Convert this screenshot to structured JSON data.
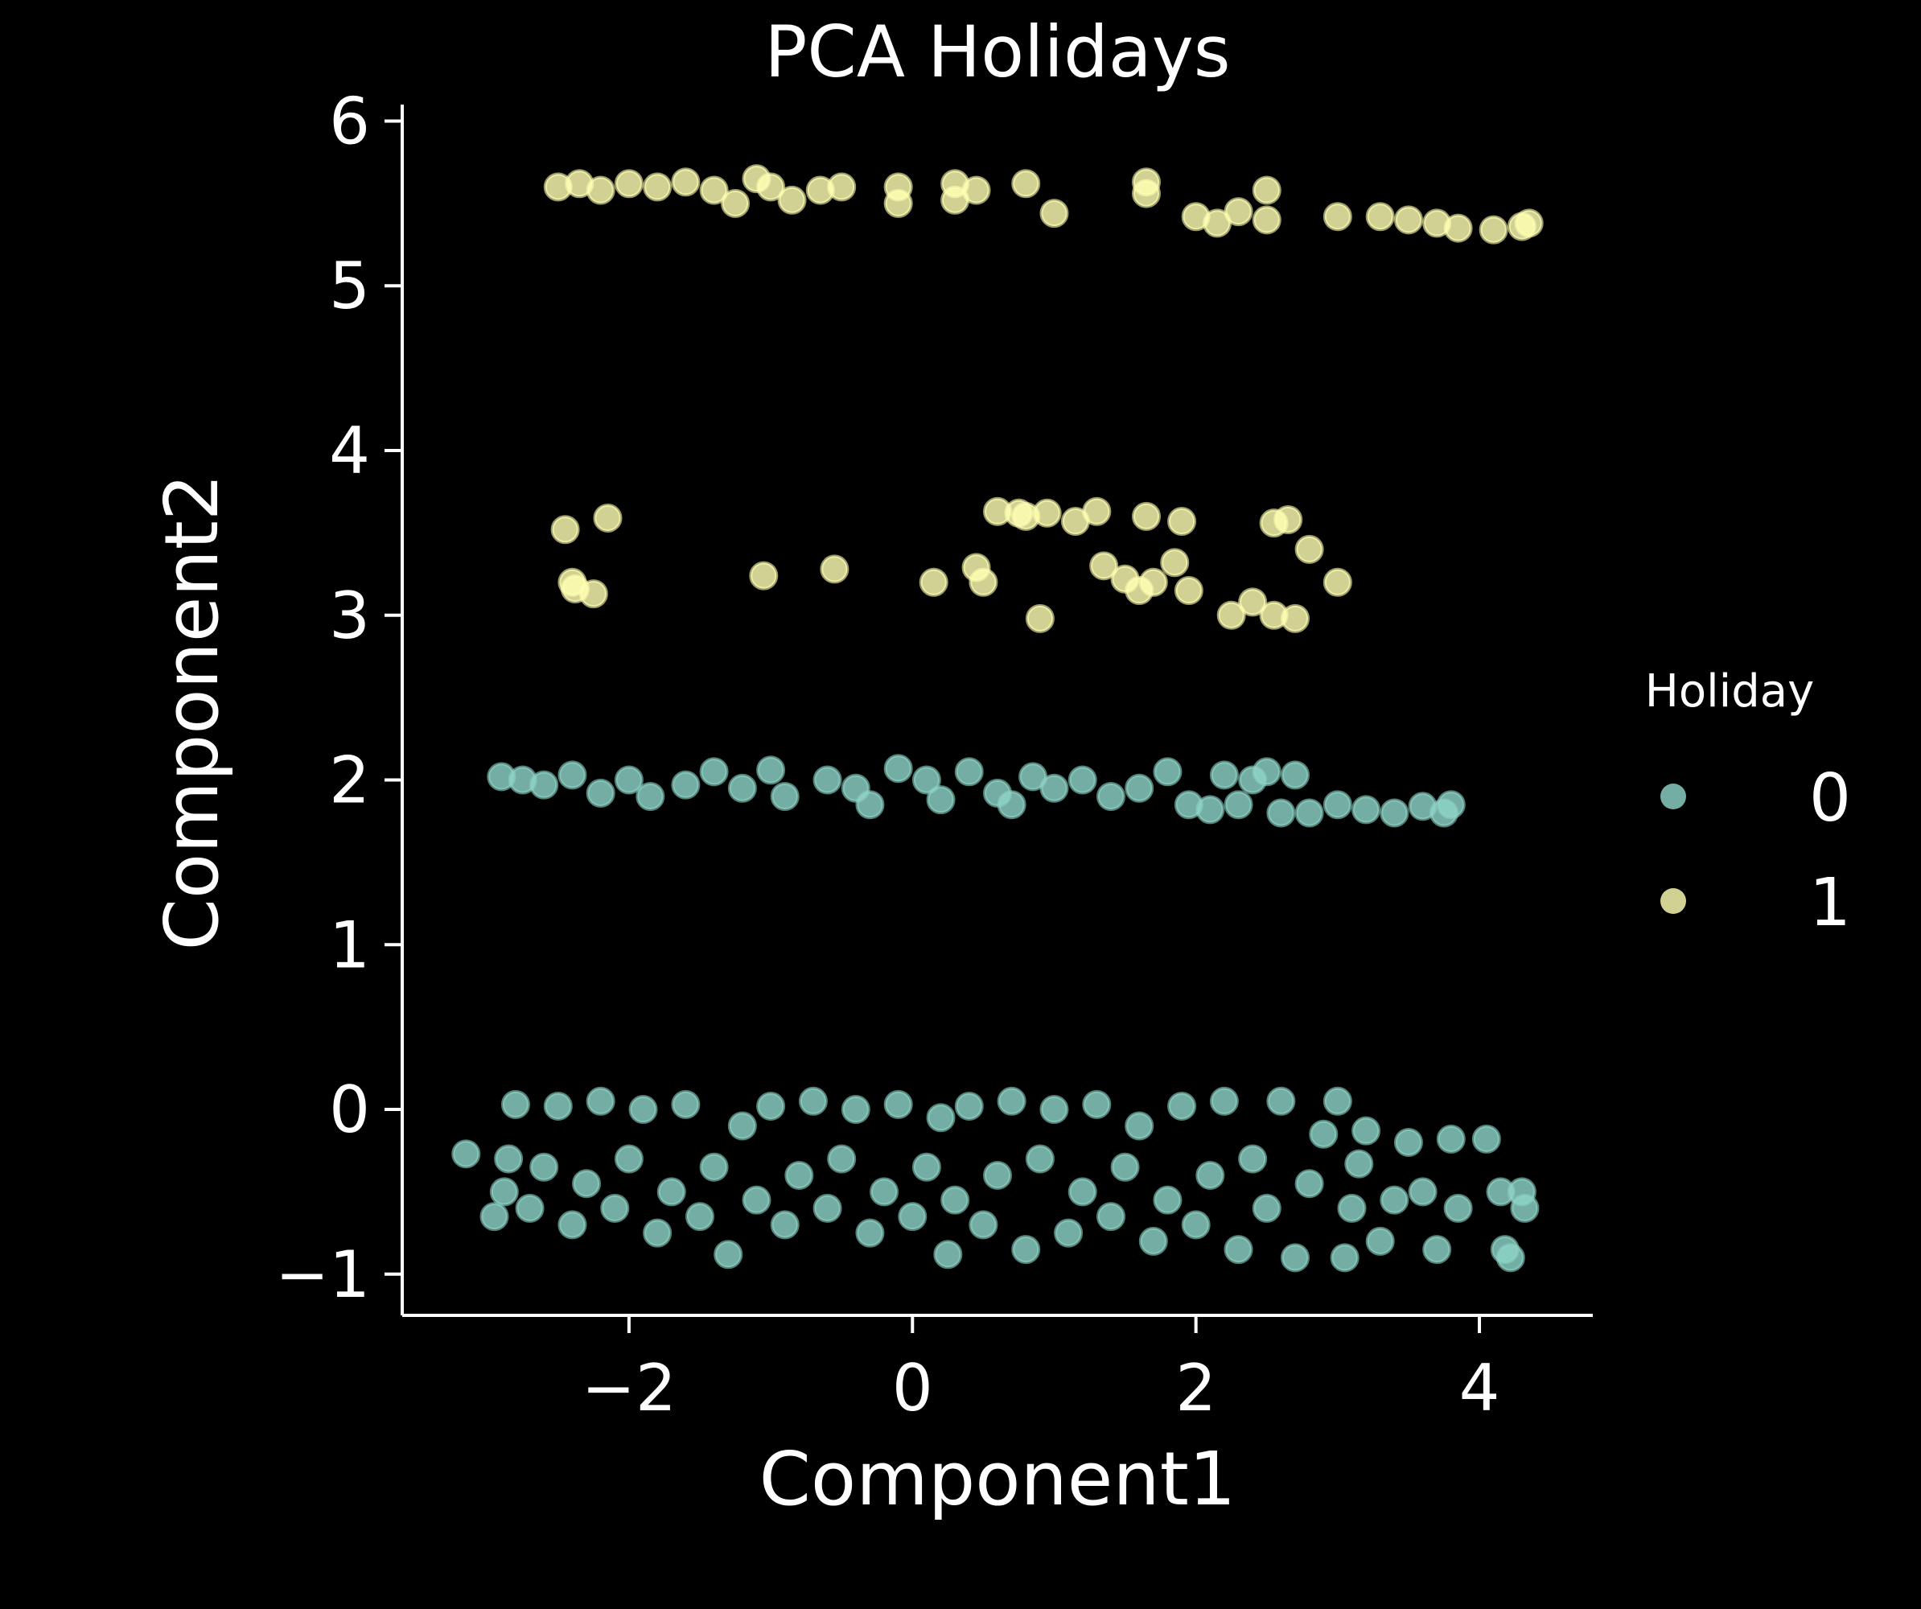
{
  "chart_data": {
    "type": "scatter",
    "title": "PCA Holidays",
    "xlabel": "Component1",
    "ylabel": "Component2",
    "xlim": [
      -3.6,
      4.8
    ],
    "ylim": [
      -1.25,
      6.1
    ],
    "xticks": [
      {
        "value": -2,
        "label": "−2"
      },
      {
        "value": 0,
        "label": "0"
      },
      {
        "value": 2,
        "label": "2"
      },
      {
        "value": 4,
        "label": "4"
      }
    ],
    "yticks": [
      {
        "value": -1,
        "label": "−1"
      },
      {
        "value": 0,
        "label": "0"
      },
      {
        "value": 1,
        "label": "1"
      },
      {
        "value": 2,
        "label": "2"
      },
      {
        "value": 3,
        "label": "3"
      },
      {
        "value": 4,
        "label": "4"
      },
      {
        "value": 5,
        "label": "5"
      },
      {
        "value": 6,
        "label": "6"
      }
    ],
    "grid": false,
    "background": "#000000",
    "legend": {
      "title": "Holiday",
      "position": "right"
    },
    "series": [
      {
        "name": "0",
        "color": "#8dd3c7",
        "points": [
          [
            -3.15,
            -0.27
          ],
          [
            -2.95,
            -0.65
          ],
          [
            -2.88,
            -0.5
          ],
          [
            -2.85,
            -0.3
          ],
          [
            -2.8,
            0.03
          ],
          [
            -2.7,
            -0.6
          ],
          [
            -2.6,
            -0.35
          ],
          [
            -2.5,
            0.02
          ],
          [
            -2.4,
            -0.7
          ],
          [
            -2.3,
            -0.45
          ],
          [
            -2.2,
            0.05
          ],
          [
            -2.1,
            -0.6
          ],
          [
            -2.0,
            -0.3
          ],
          [
            -1.9,
            0.0
          ],
          [
            -1.8,
            -0.75
          ],
          [
            -1.7,
            -0.5
          ],
          [
            -1.6,
            0.03
          ],
          [
            -1.5,
            -0.65
          ],
          [
            -1.4,
            -0.35
          ],
          [
            -1.3,
            -0.88
          ],
          [
            -1.2,
            -0.1
          ],
          [
            -1.1,
            -0.55
          ],
          [
            -1.0,
            0.02
          ],
          [
            -0.9,
            -0.7
          ],
          [
            -0.8,
            -0.4
          ],
          [
            -0.7,
            0.05
          ],
          [
            -0.6,
            -0.6
          ],
          [
            -0.5,
            -0.3
          ],
          [
            -0.4,
            0.0
          ],
          [
            -0.3,
            -0.75
          ],
          [
            -0.2,
            -0.5
          ],
          [
            -0.1,
            0.03
          ],
          [
            0.0,
            -0.65
          ],
          [
            0.1,
            -0.35
          ],
          [
            0.2,
            -0.05
          ],
          [
            0.25,
            -0.88
          ],
          [
            0.3,
            -0.55
          ],
          [
            0.4,
            0.02
          ],
          [
            0.5,
            -0.7
          ],
          [
            0.6,
            -0.4
          ],
          [
            0.7,
            0.05
          ],
          [
            0.8,
            -0.85
          ],
          [
            0.9,
            -0.3
          ],
          [
            1.0,
            0.0
          ],
          [
            1.1,
            -0.75
          ],
          [
            1.2,
            -0.5
          ],
          [
            1.3,
            0.03
          ],
          [
            1.4,
            -0.65
          ],
          [
            1.5,
            -0.35
          ],
          [
            1.6,
            -0.1
          ],
          [
            1.7,
            -0.8
          ],
          [
            1.8,
            -0.55
          ],
          [
            1.9,
            0.02
          ],
          [
            2.0,
            -0.7
          ],
          [
            2.1,
            -0.4
          ],
          [
            2.2,
            0.05
          ],
          [
            2.3,
            -0.85
          ],
          [
            2.4,
            -0.3
          ],
          [
            2.5,
            -0.6
          ],
          [
            2.6,
            0.05
          ],
          [
            2.7,
            -0.9
          ],
          [
            2.8,
            -0.45
          ],
          [
            2.9,
            -0.15
          ],
          [
            3.0,
            0.05
          ],
          [
            3.05,
            -0.9
          ],
          [
            3.1,
            -0.6
          ],
          [
            3.15,
            -0.33
          ],
          [
            3.2,
            -0.13
          ],
          [
            3.3,
            -0.8
          ],
          [
            3.4,
            -0.55
          ],
          [
            3.5,
            -0.2
          ],
          [
            3.6,
            -0.5
          ],
          [
            3.7,
            -0.85
          ],
          [
            3.8,
            -0.18
          ],
          [
            3.85,
            -0.6
          ],
          [
            4.05,
            -0.18
          ],
          [
            4.15,
            -0.5
          ],
          [
            4.18,
            -0.85
          ],
          [
            4.22,
            -0.9
          ],
          [
            4.3,
            -0.5
          ],
          [
            4.32,
            -0.6
          ],
          [
            -2.9,
            2.02
          ],
          [
            -2.75,
            2.0
          ],
          [
            -2.6,
            1.97
          ],
          [
            -2.4,
            2.03
          ],
          [
            -2.2,
            1.92
          ],
          [
            -2.0,
            2.0
          ],
          [
            -1.85,
            1.9
          ],
          [
            -1.6,
            1.97
          ],
          [
            -1.4,
            2.05
          ],
          [
            -1.2,
            1.95
          ],
          [
            -1.0,
            2.06
          ],
          [
            -0.9,
            1.9
          ],
          [
            -0.6,
            2.0
          ],
          [
            -0.4,
            1.95
          ],
          [
            -0.3,
            1.85
          ],
          [
            -0.1,
            2.07
          ],
          [
            0.1,
            2.0
          ],
          [
            0.2,
            1.88
          ],
          [
            0.4,
            2.05
          ],
          [
            0.6,
            1.92
          ],
          [
            0.7,
            1.85
          ],
          [
            0.85,
            2.02
          ],
          [
            1.0,
            1.95
          ],
          [
            1.2,
            2.0
          ],
          [
            1.4,
            1.9
          ],
          [
            1.6,
            1.95
          ],
          [
            1.8,
            2.05
          ],
          [
            1.95,
            1.85
          ],
          [
            2.1,
            1.82
          ],
          [
            2.2,
            2.03
          ],
          [
            2.3,
            1.85
          ],
          [
            2.4,
            2.0
          ],
          [
            2.5,
            2.05
          ],
          [
            2.6,
            1.8
          ],
          [
            2.7,
            2.03
          ],
          [
            2.8,
            1.8
          ],
          [
            3.0,
            1.85
          ],
          [
            3.2,
            1.82
          ],
          [
            3.4,
            1.8
          ],
          [
            3.6,
            1.84
          ],
          [
            3.75,
            1.8
          ],
          [
            3.8,
            1.85
          ]
        ]
      },
      {
        "name": "1",
        "color": "#ffffb3",
        "points": [
          [
            -2.5,
            5.6
          ],
          [
            -2.35,
            5.62
          ],
          [
            -2.2,
            5.58
          ],
          [
            -2.0,
            5.62
          ],
          [
            -1.8,
            5.6
          ],
          [
            -1.6,
            5.63
          ],
          [
            -1.4,
            5.58
          ],
          [
            -1.25,
            5.5
          ],
          [
            -1.1,
            5.65
          ],
          [
            -1.0,
            5.6
          ],
          [
            -0.85,
            5.52
          ],
          [
            -0.65,
            5.58
          ],
          [
            -0.5,
            5.6
          ],
          [
            -0.1,
            5.6
          ],
          [
            -0.1,
            5.5
          ],
          [
            0.3,
            5.62
          ],
          [
            0.3,
            5.52
          ],
          [
            0.45,
            5.58
          ],
          [
            0.8,
            5.62
          ],
          [
            1.0,
            5.44
          ],
          [
            1.65,
            5.63
          ],
          [
            1.65,
            5.56
          ],
          [
            2.0,
            5.42
          ],
          [
            2.15,
            5.38
          ],
          [
            2.3,
            5.45
          ],
          [
            2.5,
            5.4
          ],
          [
            2.5,
            5.58
          ],
          [
            3.0,
            5.42
          ],
          [
            3.3,
            5.42
          ],
          [
            3.5,
            5.4
          ],
          [
            3.7,
            5.38
          ],
          [
            3.85,
            5.35
          ],
          [
            4.1,
            5.34
          ],
          [
            4.3,
            5.36
          ],
          [
            4.35,
            5.38
          ],
          [
            -2.45,
            3.52
          ],
          [
            -2.4,
            3.2
          ],
          [
            -2.38,
            3.16
          ],
          [
            -2.25,
            3.13
          ],
          [
            -2.15,
            3.59
          ],
          [
            -1.05,
            3.24
          ],
          [
            -0.55,
            3.28
          ],
          [
            0.15,
            3.2
          ],
          [
            0.45,
            3.29
          ],
          [
            0.5,
            3.2
          ],
          [
            0.6,
            3.63
          ],
          [
            0.75,
            3.62
          ],
          [
            0.8,
            3.6
          ],
          [
            0.95,
            3.62
          ],
          [
            1.15,
            3.57
          ],
          [
            1.3,
            3.63
          ],
          [
            1.35,
            3.3
          ],
          [
            1.5,
            3.22
          ],
          [
            1.6,
            3.15
          ],
          [
            1.65,
            3.6
          ],
          [
            1.7,
            3.2
          ],
          [
            1.85,
            3.32
          ],
          [
            1.9,
            3.57
          ],
          [
            1.95,
            3.15
          ],
          [
            0.9,
            2.98
          ],
          [
            2.25,
            3.0
          ],
          [
            2.4,
            3.08
          ],
          [
            2.55,
            3.0
          ],
          [
            2.55,
            3.56
          ],
          [
            2.65,
            3.58
          ],
          [
            2.7,
            2.98
          ],
          [
            2.8,
            3.4
          ],
          [
            3.0,
            3.2
          ]
        ]
      }
    ]
  }
}
